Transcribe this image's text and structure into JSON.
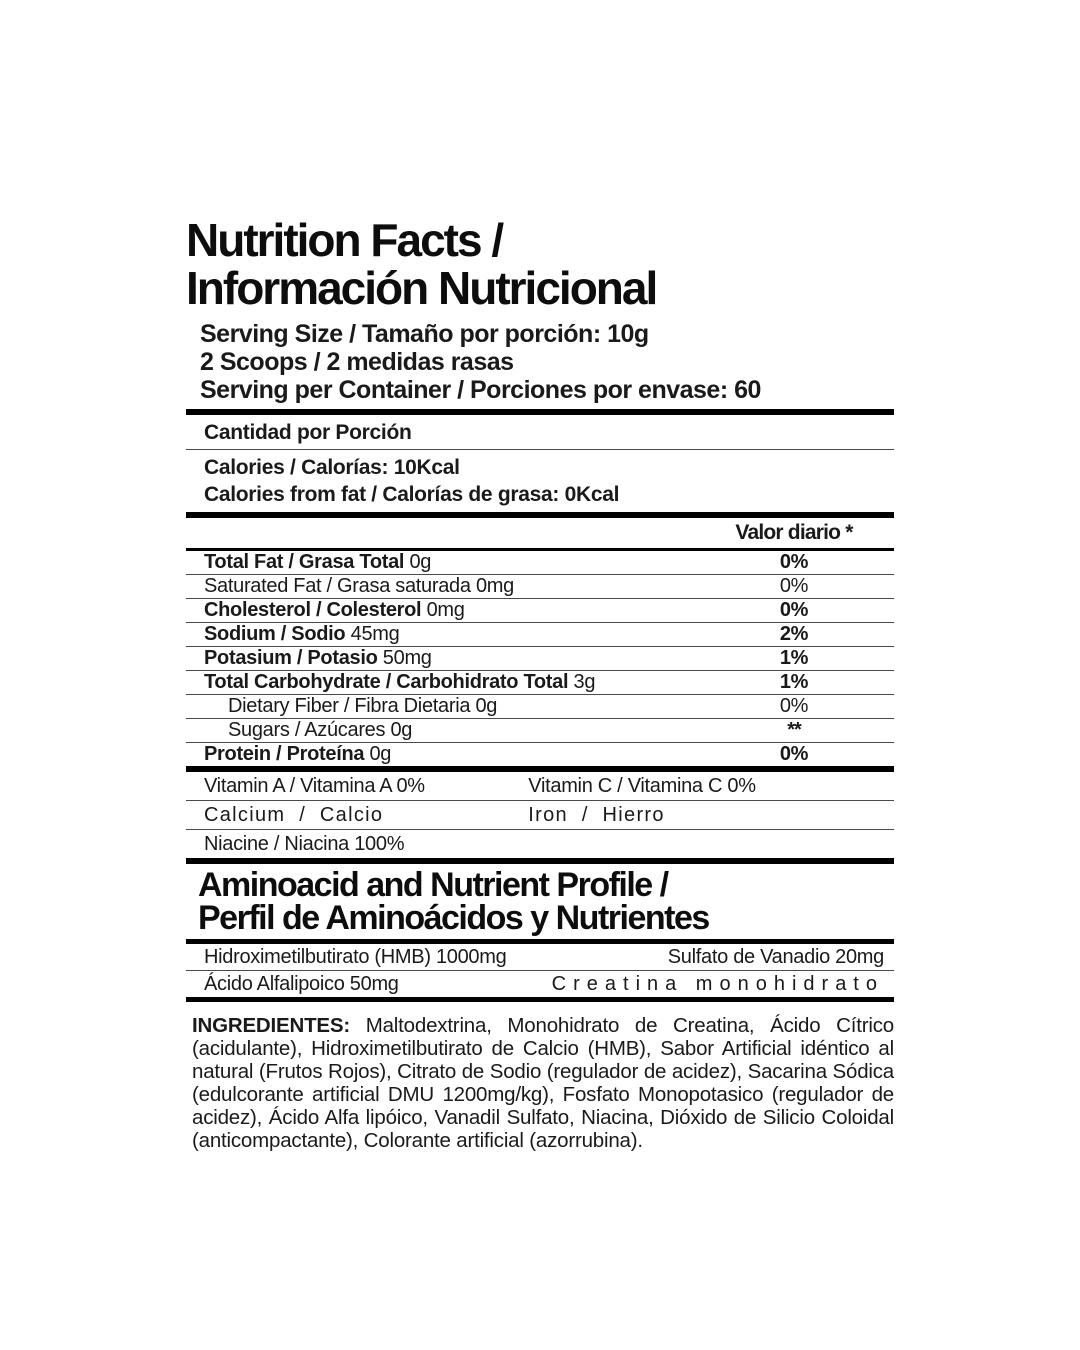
{
  "label": {
    "title_line1": "Nutrition Facts /",
    "title_line2": "Información Nutricional",
    "serving_line1": "Serving Size / Tamaño por porción: 10g",
    "serving_line2": "2 Scoops / 2 medidas rasas",
    "serving_line3": "Serving per Container / Porciones por envase: 60",
    "amount_per_serving": "Cantidad por Porción",
    "calories_line": "Calories / Calorías: 10Kcal",
    "calories_fat_line": "Calories from fat / Calorías de grasa: 0Kcal",
    "dv_header": "Valor diario *",
    "nutrient_rows": [
      {
        "label": "Total Fat / Grasa Total",
        "amount": "0g",
        "dv": "0%"
      },
      {
        "label": "Saturated Fat / Grasa saturada",
        "amount": "0mg",
        "dv": "0%"
      },
      {
        "label": "Cholesterol / Colesterol",
        "amount": "0mg",
        "dv": "0%"
      },
      {
        "label": "Sodium / Sodio",
        "amount": "45mg",
        "dv": "2%"
      },
      {
        "label": "Potasium / Potasio",
        "amount": "50mg",
        "dv": "1%"
      },
      {
        "label": "Total Carbohydrate / Carbohidrato Total",
        "amount": "3g",
        "dv": "1%"
      },
      {
        "label": "Dietary Fiber / Fibra Dietaria",
        "amount": "0g",
        "dv": "0%"
      },
      {
        "label": "Sugars / Azúcares",
        "amount": "0g",
        "dv": "**"
      },
      {
        "label": "Protein / Proteína",
        "amount": "0g",
        "dv": "0%"
      }
    ],
    "vitamin_rows": [
      {
        "left": "Vitamin A / Vitamina A 0%",
        "right": "Vitamin C / Vitamina C 0%"
      },
      {
        "left": "Calcium / Calcio",
        "right": "Iron / Hierro"
      },
      {
        "left": "Niacine / Niacina 100%",
        "right": ""
      }
    ],
    "profile_title_line1": "Aminoacid and Nutrient Profile /",
    "profile_title_line2": "Perfil de Aminoácidos y Nutrientes",
    "profile_rows": [
      {
        "left": "Hidroximetilbutirato (HMB) 1000mg",
        "right": "Sulfato de Vanadio 20mg"
      },
      {
        "left": "Ácido Alfalipoico 50mg",
        "right": "Creatina monohidrato"
      }
    ],
    "ingredients_label": "INGREDIENTES:",
    "ingredients_text": "Maltodextrina, Monohidrato de Creatina, Ácido Cítrico (acidulante), Hidroximetilbutirato de Calcio (HMB), Sabor Artificial idéntico al natural (Frutos Rojos), Citrato de Sodio (regulador de acidez), Sacarina Sódica (edulcorante artificial DMU 1200mg/kg), Fosfato Monopotasico (regulador de acidez), Ácido Alfa lipóico, Vanadil Sulfato, Niacina, Dióxido de Silicio Coloidal (anticompactante), Colorante artificial (azorrubina)."
  },
  "colors": {
    "background": "#ffffff",
    "text": "#1a1a1a",
    "rule": "#000000"
  }
}
